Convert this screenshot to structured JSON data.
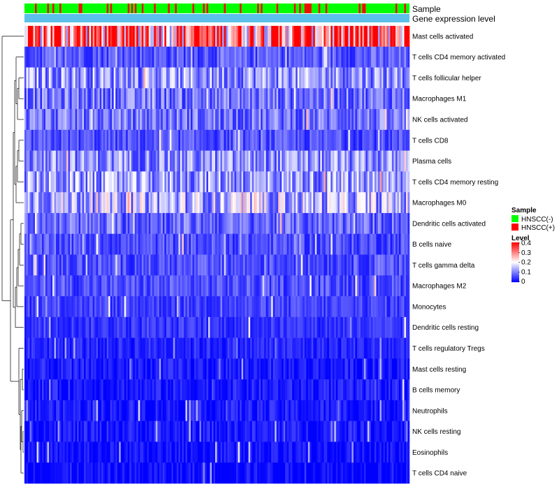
{
  "chart_data": {
    "type": "heatmap",
    "title": "",
    "annotations": {
      "sample_label": "Sample",
      "expression_label": "Gene expression level"
    },
    "rows": [
      "Mast cells activated",
      "T cells CD4 memory activated",
      "T cells follicular helper",
      "Macrophages M1",
      "NK cells activated",
      "T cells CD8",
      "Plasma cells",
      "T cells CD4 memory resting",
      "Macrophages M0",
      "Dendritic cells activated",
      "B cells naive",
      "T cells gamma delta",
      "Macrophages M2",
      "Monocytes",
      "Dendritic cells resting",
      "T cells regulatory  Tregs",
      "Mast cells resting",
      "B cells memory",
      "Neutrophils",
      "NK cells resting",
      "Eosinophils",
      "T cells CD4 naive"
    ],
    "row_means": [
      0.32,
      0.07,
      0.12,
      0.09,
      0.09,
      0.06,
      0.11,
      0.12,
      0.14,
      0.08,
      0.06,
      0.06,
      0.06,
      0.05,
      0.04,
      0.03,
      0.02,
      0.02,
      0.02,
      0.02,
      0.01,
      0.01
    ],
    "n_samples": 220,
    "sample_groups": [
      "HNSCC(-)",
      "HNSCC(+)"
    ],
    "group_colors": {
      "HNSCC(-)": "#00ff00",
      "HNSCC(+)": "#ff0000"
    },
    "expression_bar_color": "#5bc0eb",
    "color_scale": {
      "min": 0,
      "max": 0.4,
      "stops": [
        "#0000ff",
        "#ffffff",
        "#ff0000"
      ],
      "ticks": [
        "0",
        "0.1",
        "0.2",
        "0.3",
        "0.4"
      ]
    },
    "legend": {
      "sample_title": "Sample",
      "sample_items": [
        "HNSCC(-)",
        "HNSCC(+)"
      ],
      "level_title": "Level"
    }
  }
}
